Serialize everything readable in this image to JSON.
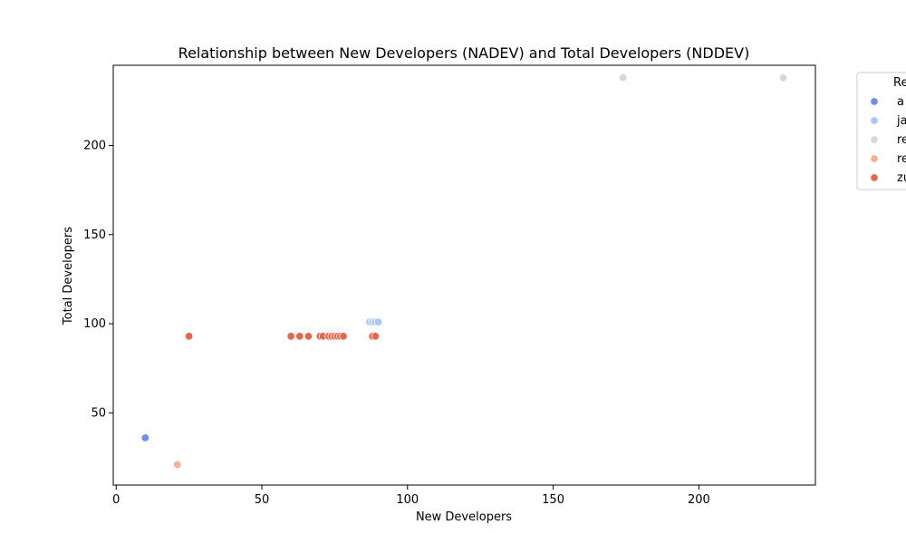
{
  "chart_data": {
    "type": "scatter",
    "title": "Relationship between New Developers (NADEV) and Total Developers (NDDEV)",
    "xlabel": "New Developers",
    "ylabel": "Total Developers",
    "xlim": [
      -1,
      240
    ],
    "ylim": [
      9.5,
      245
    ],
    "xticks": [
      0,
      50,
      100,
      150,
      200
    ],
    "yticks": [
      50,
      100,
      150,
      200
    ],
    "grid": false,
    "legend": {
      "placement": "outside-right-top",
      "title": "Re",
      "entries": [
        "a",
        "ja",
        "re",
        "re",
        "zu"
      ]
    },
    "series": [
      {
        "name": "a",
        "color": "#6f8ee8",
        "points": [
          [
            10,
            36
          ]
        ]
      },
      {
        "name": "ja",
        "color": "#abc6fb",
        "points": [
          [
            87,
            101
          ],
          [
            88,
            101
          ],
          [
            89,
            101
          ],
          [
            90,
            101
          ]
        ]
      },
      {
        "name": "re",
        "color": "#d8d8d8",
        "points": [
          [
            174,
            238
          ],
          [
            229,
            238
          ]
        ]
      },
      {
        "name": "re",
        "color": "#f4b092",
        "points": [
          [
            21,
            21
          ]
        ]
      },
      {
        "name": "zu",
        "color": "#e2684f",
        "points": [
          [
            25,
            93
          ],
          [
            60,
            93
          ],
          [
            63,
            93
          ],
          [
            66,
            93
          ],
          [
            70,
            93
          ],
          [
            71,
            93
          ],
          [
            73,
            93
          ],
          [
            74,
            93
          ],
          [
            75,
            93
          ],
          [
            76,
            93
          ],
          [
            77,
            93
          ],
          [
            78,
            93
          ],
          [
            88,
            93
          ],
          [
            89,
            93
          ]
        ]
      }
    ]
  }
}
